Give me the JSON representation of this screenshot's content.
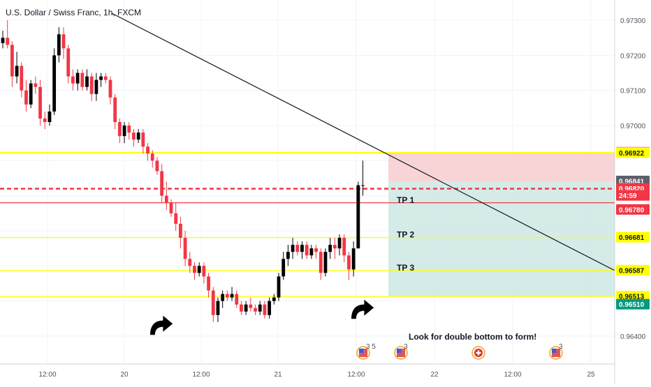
{
  "chart_data": {
    "type": "candlestick",
    "title": "U.S. Dollar / Swiss Franc, 1h, FXCM",
    "x_ticks": [
      "12:00",
      "20",
      "12:00",
      "21",
      "12:00",
      "22",
      "12:00",
      "25"
    ],
    "y_ticks": [
      "0.97300",
      "0.97200",
      "0.97100",
      "0.97000",
      "0.96400"
    ],
    "ylim": [
      0.9633,
      0.9732
    ],
    "grid": true,
    "candles": [
      [
        0.97235,
        0.9727,
        0.9722,
        0.9725
      ],
      [
        0.9725,
        0.973,
        0.9722,
        0.9723
      ],
      [
        0.9723,
        0.9724,
        0.9711,
        0.9714
      ],
      [
        0.9714,
        0.9721,
        0.9712,
        0.9717
      ],
      [
        0.9717,
        0.9718,
        0.9708,
        0.971
      ],
      [
        0.971,
        0.9713,
        0.9704,
        0.9706
      ],
      [
        0.9706,
        0.9713,
        0.9705,
        0.9712
      ],
      [
        0.9712,
        0.9714,
        0.9709,
        0.9711
      ],
      [
        0.9711,
        0.9713,
        0.97,
        0.9702
      ],
      [
        0.9702,
        0.9704,
        0.9699,
        0.9701
      ],
      [
        0.9701,
        0.9706,
        0.97,
        0.9704
      ],
      [
        0.9704,
        0.9722,
        0.9703,
        0.972
      ],
      [
        0.972,
        0.9728,
        0.9718,
        0.9726
      ],
      [
        0.9726,
        0.9728,
        0.9719,
        0.9722
      ],
      [
        0.9722,
        0.9723,
        0.9712,
        0.9714
      ],
      [
        0.9714,
        0.9716,
        0.971,
        0.9712
      ],
      [
        0.9712,
        0.9716,
        0.971,
        0.9715
      ],
      [
        0.9715,
        0.9716,
        0.971,
        0.9711
      ],
      [
        0.9711,
        0.9716,
        0.971,
        0.9714
      ],
      [
        0.9714,
        0.9715,
        0.9707,
        0.9709
      ],
      [
        0.9709,
        0.9715,
        0.9707,
        0.9713
      ],
      [
        0.9713,
        0.9715,
        0.9711,
        0.9714
      ],
      [
        0.9714,
        0.9715,
        0.9712,
        0.9713
      ],
      [
        0.9713,
        0.9714,
        0.9706,
        0.9708
      ],
      [
        0.9708,
        0.9709,
        0.9699,
        0.9701
      ],
      [
        0.9701,
        0.9702,
        0.9695,
        0.9697
      ],
      [
        0.9697,
        0.9701,
        0.9695,
        0.97
      ],
      [
        0.97,
        0.9701,
        0.9696,
        0.9698
      ],
      [
        0.9698,
        0.9699,
        0.9694,
        0.9696
      ],
      [
        0.9696,
        0.9699,
        0.9695,
        0.9698
      ],
      [
        0.9698,
        0.9699,
        0.9692,
        0.9694
      ],
      [
        0.9694,
        0.9695,
        0.969,
        0.9692
      ],
      [
        0.9692,
        0.9693,
        0.9688,
        0.969
      ],
      [
        0.969,
        0.9691,
        0.9686,
        0.9687
      ],
      [
        0.9687,
        0.9689,
        0.9678,
        0.968
      ],
      [
        0.968,
        0.9684,
        0.9676,
        0.9678
      ],
      [
        0.9678,
        0.9679,
        0.9674,
        0.9675
      ],
      [
        0.9675,
        0.9678,
        0.967,
        0.9672
      ],
      [
        0.9672,
        0.9674,
        0.9665,
        0.9668
      ],
      [
        0.9668,
        0.967,
        0.966,
        0.9662
      ],
      [
        0.9662,
        0.9664,
        0.9658,
        0.966
      ],
      [
        0.966,
        0.9661,
        0.9656,
        0.9658
      ],
      [
        0.9658,
        0.9661,
        0.9657,
        0.966
      ],
      [
        0.966,
        0.9661,
        0.9655,
        0.9657
      ],
      [
        0.9657,
        0.9658,
        0.9651,
        0.9653
      ],
      [
        0.9653,
        0.9654,
        0.9644,
        0.9646
      ],
      [
        0.9646,
        0.9651,
        0.9644,
        0.965
      ],
      [
        0.965,
        0.9653,
        0.9648,
        0.9652
      ],
      [
        0.9652,
        0.9653,
        0.965,
        0.9651
      ],
      [
        0.9651,
        0.9654,
        0.965,
        0.9652
      ],
      [
        0.9652,
        0.9653,
        0.9648,
        0.9649
      ],
      [
        0.9649,
        0.965,
        0.9646,
        0.9647
      ],
      [
        0.9647,
        0.965,
        0.9646,
        0.9649
      ],
      [
        0.9649,
        0.9651,
        0.9647,
        0.9648
      ],
      [
        0.9648,
        0.9649,
        0.9646,
        0.9647
      ],
      [
        0.9647,
        0.965,
        0.9646,
        0.9649
      ],
      [
        0.9649,
        0.965,
        0.9645,
        0.9646
      ],
      [
        0.9646,
        0.9651,
        0.9645,
        0.965
      ],
      [
        0.965,
        0.9652,
        0.9649,
        0.9651
      ],
      [
        0.9651,
        0.9658,
        0.965,
        0.9657
      ],
      [
        0.9657,
        0.9664,
        0.9656,
        0.9662
      ],
      [
        0.9662,
        0.9666,
        0.966,
        0.9664
      ],
      [
        0.9664,
        0.9668,
        0.9662,
        0.9666
      ],
      [
        0.9666,
        0.9667,
        0.9663,
        0.9664
      ],
      [
        0.9664,
        0.9667,
        0.9662,
        0.9666
      ],
      [
        0.9666,
        0.9667,
        0.9662,
        0.9663
      ],
      [
        0.9663,
        0.9666,
        0.9662,
        0.9665
      ],
      [
        0.9665,
        0.9666,
        0.9662,
        0.9664
      ],
      [
        0.9664,
        0.9665,
        0.9656,
        0.9658
      ],
      [
        0.9658,
        0.9665,
        0.9657,
        0.9664
      ],
      [
        0.9664,
        0.9668,
        0.9662,
        0.9666
      ],
      [
        0.9666,
        0.9668,
        0.9662,
        0.9665
      ],
      [
        0.9665,
        0.9669,
        0.9663,
        0.9668
      ],
      [
        0.9668,
        0.9669,
        0.9661,
        0.9663
      ],
      [
        0.9663,
        0.9664,
        0.9656,
        0.9659
      ],
      [
        0.9659,
        0.9667,
        0.9657,
        0.9665
      ],
      [
        0.9665,
        0.9684,
        0.9665,
        0.9683
      ],
      [
        0.9683,
        0.969,
        0.968,
        0.9683
      ]
    ],
    "trendline": {
      "from": {
        "x": "U.S. Dollar / Swiss Franc",
        "y": 0.9732
      },
      "to": {
        "x": "end",
        "y": 0.96587
      }
    },
    "levels": [
      {
        "value": 0.96923,
        "color": "#ffff00",
        "style": "solid"
      },
      {
        "value": 0.96922,
        "color": "#ffff00",
        "style": "solid"
      },
      {
        "value": 0.9682,
        "color": "#f23645",
        "style": "dashed"
      },
      {
        "value": 0.9678,
        "color": "#f23645",
        "style": "solid"
      },
      {
        "value": 0.96681,
        "color": "#ffff00",
        "style": "solid"
      },
      {
        "value": 0.96587,
        "color": "#ffff00",
        "style": "solid"
      },
      {
        "value": 0.96513,
        "color": "#ffff00",
        "style": "solid"
      }
    ],
    "position": {
      "entry": 0.96841,
      "stop": 0.96923,
      "target": 0.96513
    },
    "price_tags": [
      {
        "label": "0.96923",
        "value": 0.96923,
        "bg": "#f23645",
        "fg": "#ffffff"
      },
      {
        "label": "0.96922",
        "value": 0.96922,
        "bg": "#ffff00",
        "fg": "#131722"
      },
      {
        "label": "0.96841",
        "value": 0.96841,
        "bg": "#5d606b",
        "fg": "#ffffff"
      },
      {
        "label": "0.96820",
        "value": 0.9682,
        "bg": "#f23645",
        "fg": "#ffffff"
      },
      {
        "label": "24:59",
        "value": 0.968,
        "bg": "#f23645",
        "fg": "#ffffff"
      },
      {
        "label": "0.96780",
        "value": 0.9676,
        "bg": "#f23645",
        "fg": "#ffffff"
      },
      {
        "label": "0.96681",
        "value": 0.96681,
        "bg": "#ffff00",
        "fg": "#131722"
      },
      {
        "label": "0.96587",
        "value": 0.96587,
        "bg": "#ffff00",
        "fg": "#131722"
      },
      {
        "label": "0.96513",
        "value": 0.96513,
        "bg": "#ffff00",
        "fg": "#131722"
      },
      {
        "label": "0.96510",
        "value": 0.9649,
        "bg": "#089981",
        "fg": "#ffffff"
      }
    ],
    "annotations": [
      {
        "text": "TP 1",
        "value": 0.9678
      },
      {
        "text": "TP 2",
        "value": 0.96681
      },
      {
        "text": "TP 3",
        "value": 0.96587
      },
      {
        "text": "Look for double bottom to form!",
        "value": 0.9644
      }
    ],
    "events": [
      {
        "icon": "us-flag-icon",
        "count": "3 5"
      },
      {
        "icon": "us-flag-icon",
        "count": "3"
      },
      {
        "icon": "swiss-flag-icon",
        "count": ""
      },
      {
        "icon": "us-flag-icon",
        "count": "3"
      }
    ],
    "colors": {
      "up": "#000000",
      "down": "#f23645",
      "stop_zone": "#f7c5c8",
      "target_zone": "#cfe9e5"
    }
  }
}
